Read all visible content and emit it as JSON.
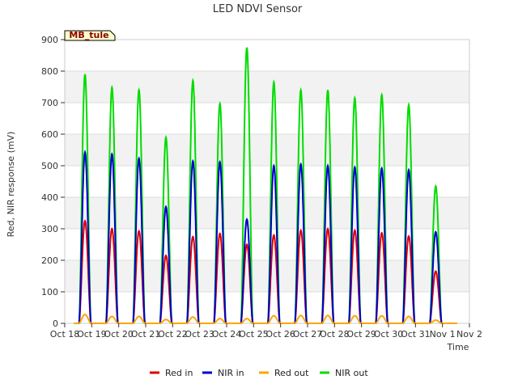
{
  "chart_data": {
    "type": "line",
    "title": "LED NDVI Sensor",
    "xlabel": "Time",
    "ylabel": "Red, NIR response (mV)",
    "badge": "MB_tule",
    "ylim": [
      0,
      900
    ],
    "yticks": [
      0,
      100,
      200,
      300,
      400,
      500,
      600,
      700,
      800,
      900
    ],
    "xlim": [
      0,
      15
    ],
    "xticks": [
      {
        "x": 0,
        "label": "Oct 18"
      },
      {
        "x": 1,
        "label": "Oct 19"
      },
      {
        "x": 2,
        "label": "Oct 20"
      },
      {
        "x": 3,
        "label": "Oct 21"
      },
      {
        "x": 4,
        "label": "Oct 22"
      },
      {
        "x": 5,
        "label": "Oct 23"
      },
      {
        "x": 6,
        "label": "Oct 24"
      },
      {
        "x": 7,
        "label": "Oct 25"
      },
      {
        "x": 8,
        "label": "Oct 26"
      },
      {
        "x": 9,
        "label": "Oct 27"
      },
      {
        "x": 10,
        "label": "Oct 28"
      },
      {
        "x": 11,
        "label": "Oct 29"
      },
      {
        "x": 12,
        "label": "Oct 30"
      },
      {
        "x": 13,
        "label": "Oct 31"
      },
      {
        "x": 14,
        "label": "Nov 1"
      },
      {
        "x": 15,
        "label": "Nov 2"
      }
    ],
    "x_unit": "days since Oct 18",
    "grid": "horizontal bands",
    "legend_position": "bottom",
    "series": [
      {
        "name": "Red in",
        "color": "#dd0000",
        "peaks": [
          325,
          300,
          293,
          215,
          275,
          285,
          250,
          280,
          295,
          300,
          295,
          287,
          277,
          165
        ]
      },
      {
        "name": "NIR in",
        "color": "#0000cc",
        "peaks": [
          543,
          537,
          523,
          370,
          515,
          512,
          330,
          500,
          505,
          500,
          495,
          492,
          487,
          290
        ]
      },
      {
        "name": "Red out",
        "color": "#ffa500",
        "peaks": [
          28,
          22,
          22,
          12,
          20,
          15,
          15,
          24,
          25,
          25,
          24,
          24,
          22,
          10
        ]
      },
      {
        "name": "NIR out",
        "color": "#00dd00",
        "peaks": [
          790,
          748,
          740,
          590,
          770,
          697,
          875,
          765,
          740,
          740,
          715,
          725,
          693,
          435
        ]
      }
    ]
  }
}
